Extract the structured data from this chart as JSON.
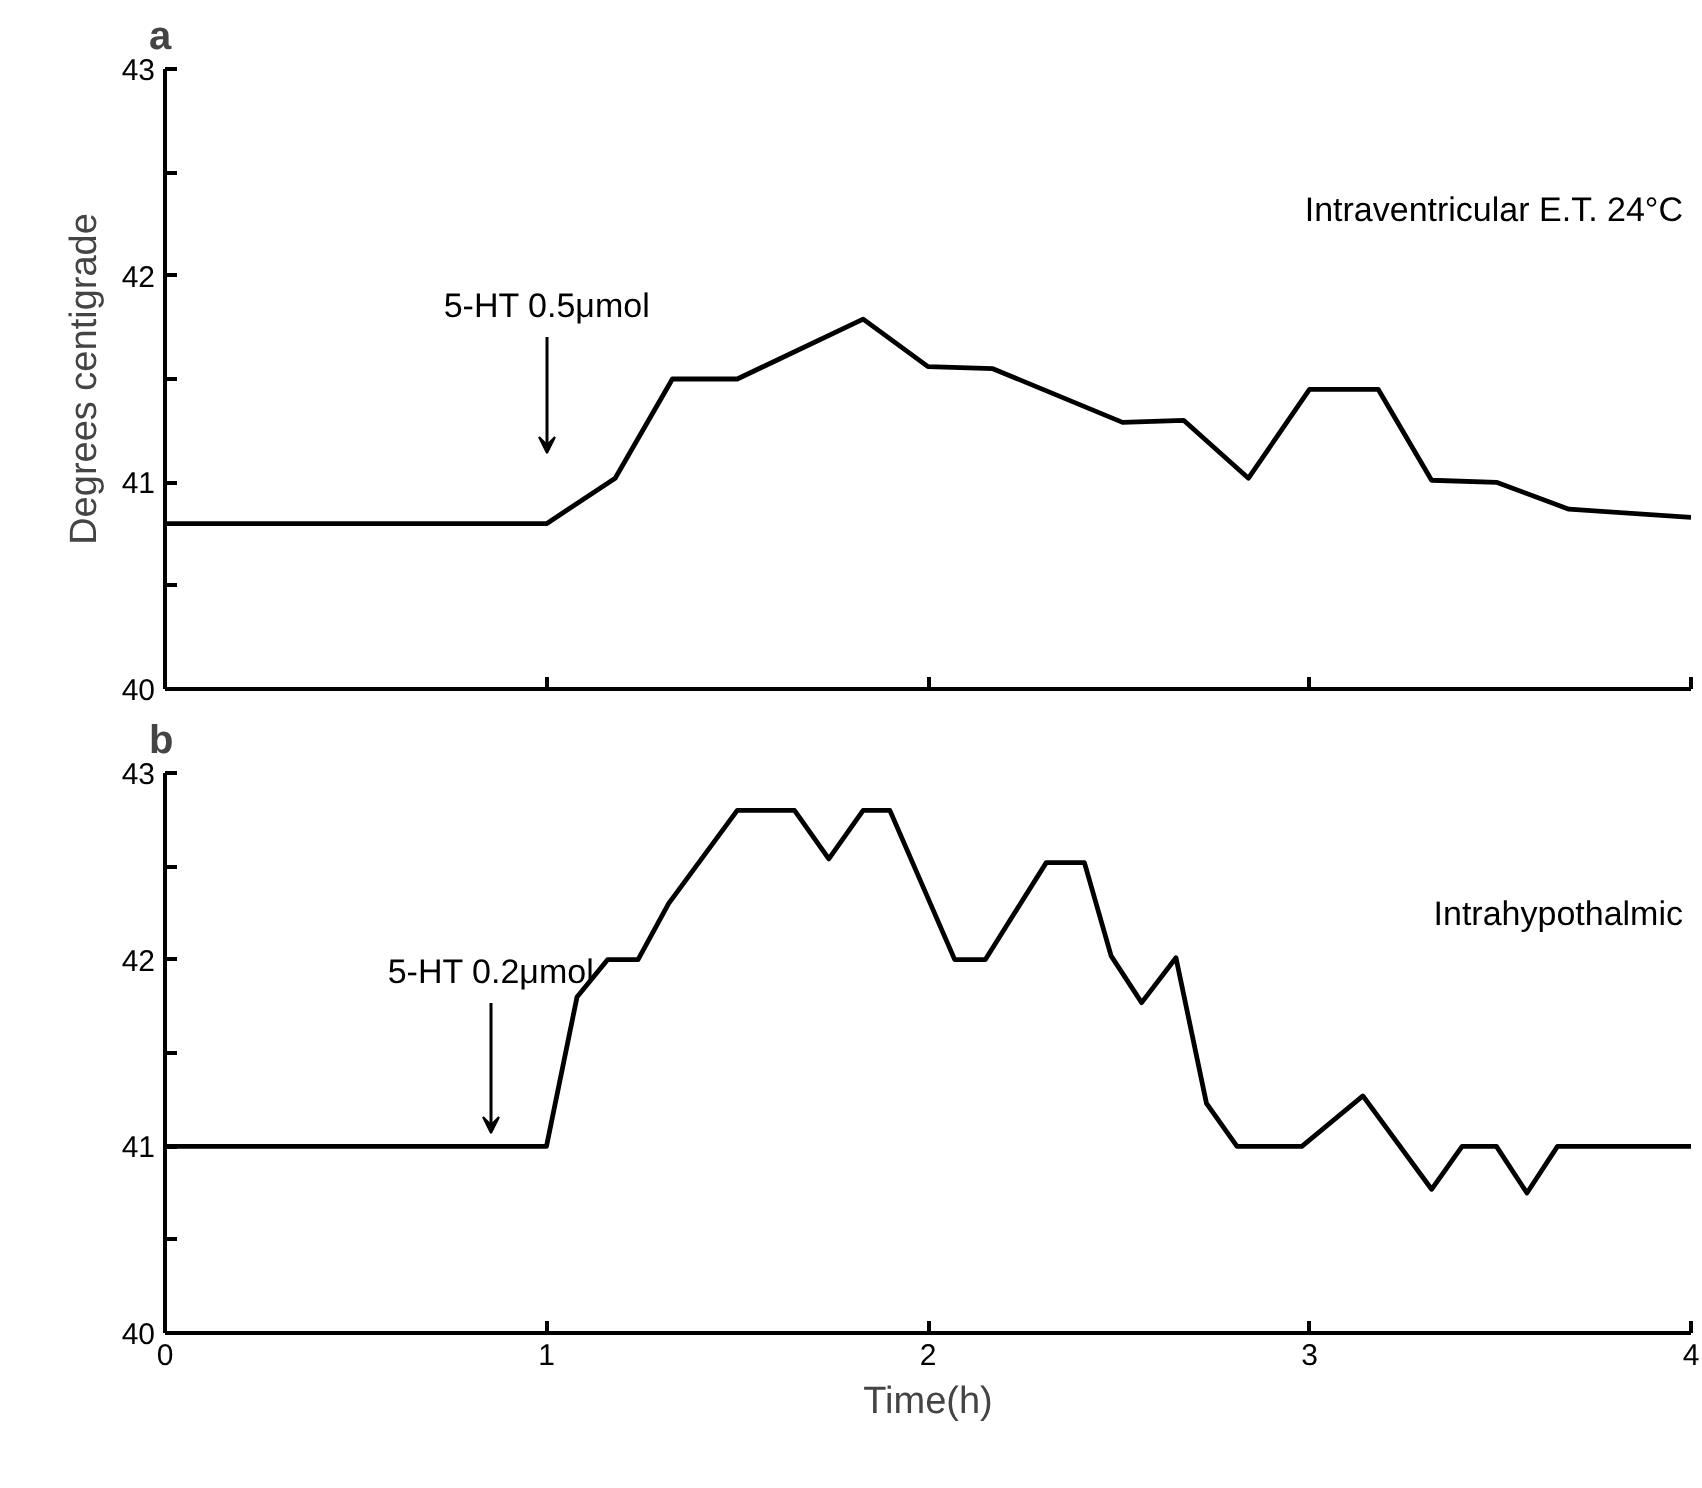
{
  "chart_data": [
    {
      "type": "line",
      "title": "a",
      "ylabel": "Degrees centigrade",
      "xlim": [
        0,
        4
      ],
      "ylim": [
        40,
        43
      ],
      "xticks": [
        0,
        1,
        2,
        3,
        4
      ],
      "yticks": [
        40,
        {
          "value": 40.5,
          "label": null
        },
        41,
        {
          "value": 41.5,
          "label": null
        },
        42,
        {
          "value": 42.5,
          "label": null
        },
        43
      ],
      "tick_labels": "y",
      "grid": false,
      "marker": "none",
      "line_style": "solid",
      "series": [
        {
          "color": "#000000",
          "x": [
            0,
            1.0,
            1.18,
            1.33,
            1.5,
            1.83,
            2.0,
            2.17,
            2.51,
            2.67,
            2.84,
            3.0,
            3.18,
            3.32,
            3.49,
            3.68,
            4.0
          ],
          "values": [
            40.8,
            40.8,
            41.02,
            41.5,
            41.5,
            41.79,
            41.56,
            41.55,
            41.29,
            41.3,
            41.02,
            41.45,
            41.45,
            41.01,
            41.0,
            40.87,
            40.83
          ]
        }
      ],
      "annotations": [
        "5-HT 0.5μmol",
        "Intraventricular E.T. 24°C"
      ]
    },
    {
      "type": "line",
      "title": "b",
      "xlabel": "Time(h)",
      "xlim": [
        0,
        4
      ],
      "ylim": [
        40,
        43
      ],
      "xticks": [
        0,
        1,
        2,
        3,
        4
      ],
      "yticks": [
        40,
        {
          "value": 40.5,
          "label": null
        },
        41,
        {
          "value": 41.5,
          "label": null
        },
        42,
        {
          "value": 42.5,
          "label": null
        },
        43
      ],
      "grid": false,
      "marker": "none",
      "line_style": "solid",
      "series": [
        {
          "color": "#000000",
          "x": [
            0,
            1.0,
            1.08,
            1.16,
            1.24,
            1.32,
            1.5,
            1.65,
            1.74,
            1.83,
            1.9,
            2.07,
            2.15,
            2.31,
            2.41,
            2.48,
            2.56,
            2.65,
            2.73,
            2.81,
            2.98,
            3.14,
            3.32,
            3.4,
            3.49,
            3.57,
            3.65,
            4.0
          ],
          "values": [
            41.0,
            41.0,
            41.8,
            42.0,
            42.0,
            42.3,
            42.8,
            42.8,
            42.54,
            42.8,
            42.8,
            42.0,
            42.0,
            42.52,
            42.52,
            42.02,
            41.77,
            42.01,
            41.23,
            41.0,
            41.0,
            41.27,
            40.77,
            41.0,
            41.0,
            40.75,
            41.0,
            41.0
          ]
        }
      ],
      "annotations": [
        "5-HT 0.2μmol",
        "Intrahypothalmic"
      ]
    }
  ]
}
